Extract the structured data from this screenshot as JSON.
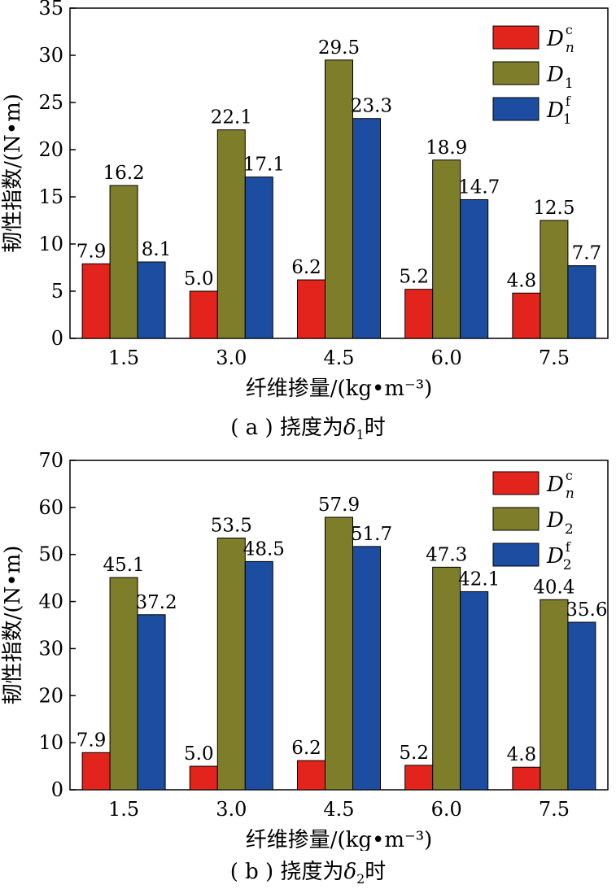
{
  "chart_data": [
    {
      "type": "bar",
      "title": "",
      "xlabel": "纤维掺量/(kg•m⁻³)",
      "ylabel": "韧性指数/(N•m)",
      "ylim": [
        0,
        35
      ],
      "yticks": [
        "0",
        "5",
        "10",
        "15",
        "20",
        "25",
        "30",
        "35"
      ],
      "categories": [
        "1.5",
        "3.0",
        "4.5",
        "6.0",
        "7.5"
      ],
      "series": [
        {
          "name": "Dn^c",
          "base": "D",
          "sub": "n",
          "sup": "c",
          "color": "#e3241c",
          "values": [
            7.9,
            5.0,
            6.2,
            5.2,
            4.8
          ],
          "labels": [
            "7.9",
            "5.0",
            "6.2",
            "5.2",
            "4.8"
          ]
        },
        {
          "name": "D1",
          "base": "D",
          "sub": "1",
          "sup": "",
          "color": "#7d7d2a",
          "values": [
            16.2,
            22.1,
            29.5,
            18.9,
            12.5
          ],
          "labels": [
            "16.2",
            "22.1",
            "29.5",
            "18.9",
            "12.5"
          ]
        },
        {
          "name": "D1^f",
          "base": "D",
          "sub": "1",
          "sup": "f",
          "color": "#1d4da0",
          "values": [
            8.1,
            17.1,
            23.3,
            14.7,
            7.7
          ],
          "labels": [
            "8.1",
            "17.1",
            "23.3",
            "14.7",
            "7.7"
          ]
        }
      ],
      "legend": "top-right",
      "grid": false,
      "caption": {
        "prefix": "( a ) 挠度为",
        "delta": "δ",
        "sub": "1",
        "suffix": "时"
      }
    },
    {
      "type": "bar",
      "title": "",
      "xlabel": "纤维掺量/(kg•m⁻³)",
      "ylabel": "韧性指数/(N•m)",
      "ylim": [
        0,
        70
      ],
      "yticks": [
        "0",
        "10",
        "20",
        "30",
        "40",
        "50",
        "60",
        "70"
      ],
      "categories": [
        "1.5",
        "3.0",
        "4.5",
        "6.0",
        "7.5"
      ],
      "series": [
        {
          "name": "Dn^c",
          "base": "D",
          "sub": "n",
          "sup": "c",
          "color": "#e3241c",
          "values": [
            7.9,
            5.0,
            6.2,
            5.2,
            4.8
          ],
          "labels": [
            "7.9",
            "5.0",
            "6.2",
            "5.2",
            "4.8"
          ]
        },
        {
          "name": "D2",
          "base": "D",
          "sub": "2",
          "sup": "",
          "color": "#7d7d2a",
          "values": [
            45.1,
            53.5,
            57.9,
            47.3,
            40.4
          ],
          "labels": [
            "45.1",
            "53.5",
            "57.9",
            "47.3",
            "40.4"
          ]
        },
        {
          "name": "D2^f",
          "base": "D",
          "sub": "2",
          "sup": "f",
          "color": "#1d4da0",
          "values": [
            37.2,
            48.5,
            51.7,
            42.1,
            35.6
          ],
          "labels": [
            "37.2",
            "48.5",
            "51.7",
            "42.1",
            "35.6"
          ]
        }
      ],
      "legend": "top-right",
      "grid": false,
      "caption": {
        "prefix": "( b ) 挠度为",
        "delta": "δ",
        "sub": "2",
        "suffix": "时"
      }
    }
  ]
}
